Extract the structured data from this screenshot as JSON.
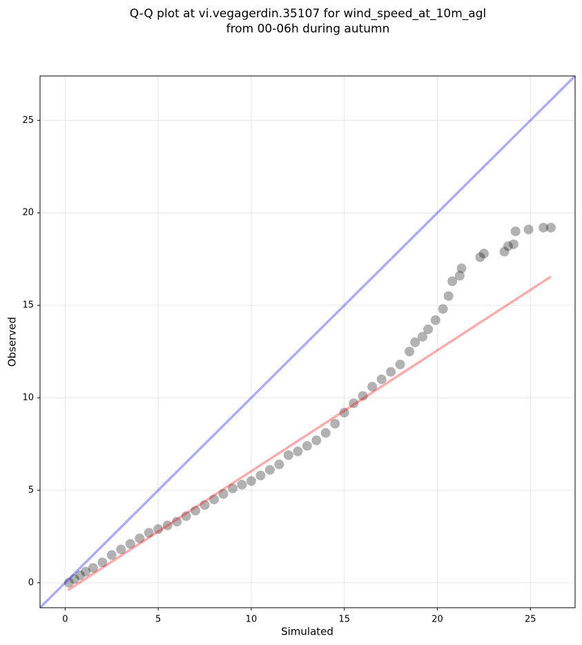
{
  "chart_data": {
    "type": "scatter",
    "title": [
      "Q-Q plot at vi.vegagerdin.35107 for wind_speed_at_10m_agl",
      "from 00-06h during autumn"
    ],
    "xlabel": "Simulated",
    "ylabel": "Observed",
    "x": [
      0.2,
      0.5,
      0.8,
      1.1,
      1.5,
      2.0,
      2.5,
      3.0,
      3.5,
      4.0,
      4.5,
      5.0,
      5.5,
      6.0,
      6.5,
      7.0,
      7.5,
      8.0,
      8.5,
      9.0,
      9.5,
      10.0,
      10.5,
      11.0,
      11.5,
      12.0,
      12.5,
      13.0,
      13.5,
      14.0,
      14.5,
      15.0,
      15.5,
      16.0,
      16.5,
      17.0,
      17.5,
      18.0,
      18.5,
      18.8,
      19.2,
      19.5,
      19.9,
      20.3,
      20.6,
      20.8,
      21.2,
      21.3,
      22.3,
      22.5,
      23.6,
      23.8,
      24.1,
      24.2,
      24.9,
      25.7,
      26.1
    ],
    "values": [
      0.0,
      0.2,
      0.4,
      0.6,
      0.8,
      1.1,
      1.5,
      1.8,
      2.1,
      2.4,
      2.7,
      2.9,
      3.1,
      3.3,
      3.6,
      3.9,
      4.2,
      4.5,
      4.8,
      5.1,
      5.3,
      5.5,
      5.8,
      6.1,
      6.4,
      6.9,
      7.1,
      7.4,
      7.7,
      8.1,
      8.6,
      9.2,
      9.7,
      10.1,
      10.6,
      11.0,
      11.4,
      11.8,
      12.5,
      13.0,
      13.3,
      13.7,
      14.2,
      14.8,
      15.5,
      16.3,
      16.6,
      17.0,
      17.6,
      17.8,
      17.9,
      18.2,
      18.3,
      19.0,
      19.1,
      19.2,
      19.2
    ],
    "color": "#000000",
    "lines": [
      {
        "x": [
          -1.35,
          27.4
        ],
        "values": [
          -1.35,
          27.4
        ],
        "color": "#0000ff"
      },
      {
        "x": [
          0.15,
          26.1
        ],
        "values": [
          -0.4,
          16.55
        ],
        "color": "#ff0000"
      }
    ],
    "xlim": [
      -1.35,
      27.4
    ],
    "ylim": [
      -1.35,
      27.4
    ],
    "xticks": [
      0,
      5,
      10,
      15,
      20,
      25
    ],
    "yticks": [
      0,
      5,
      10,
      15,
      20,
      25
    ],
    "grid": true
  }
}
